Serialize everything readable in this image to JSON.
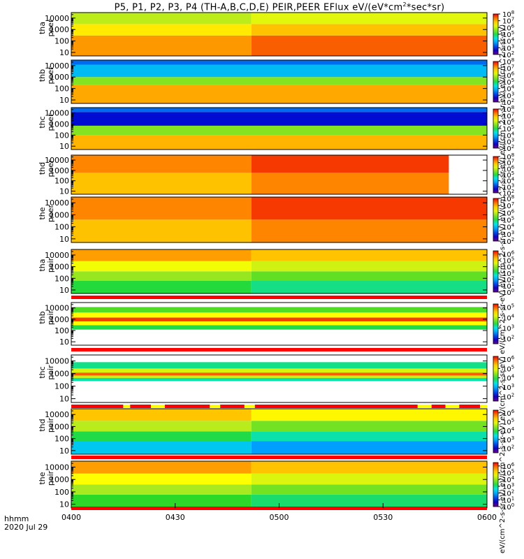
{
  "title_prefix": "P5, P1, P2, P3, P4 (TH-A,B,C,D,E) PEIR,PEER EFlux eV/(eV*cm",
  "title_exp": "2",
  "title_suffix": "*sec*sr)",
  "corner_label": {
    "line1": "hhmm",
    "line2": "2020 Jul 29"
  },
  "colorbar_label": "eV/(cm^2-s-sr-eV) eV/(cm^2-s-sr-eV) eV/(cm^2-s-sr-eV) eV/(cm^2-s-sr-eV) eV/(cm^2-s-sr-eV) eV/(cm^2-s-sr-eV) eV/(cm^2-s-sr-eV) eV/(cm^2-s-sr-eV) eV/(cm^2-s-sr-eV) [eV/(cm2-s-sr-eV)] (4)",
  "colors": {
    "low": "#0000cc",
    "mid": "#00e0e0",
    "high": "#ff0000",
    "flag_red": "#ff0000",
    "flag_yellow": "#ffff00"
  },
  "chart_data": {
    "type": "heatmap",
    "x_ticks": [
      "0400",
      "0430",
      "0500",
      "0530",
      "0600"
    ],
    "x_range_minutes": [
      0,
      120
    ],
    "y_scale": "log",
    "y_ticks": [
      "10000",
      "1000",
      "100",
      "10"
    ],
    "y_range": [
      5,
      30000
    ],
    "colorbar_scale": "log",
    "panels": [
      {
        "probe": "tha",
        "species": "peer",
        "cb_ticks": [
          8,
          7,
          6,
          5,
          4,
          3,
          2
        ],
        "cb_range": [
          2,
          8
        ],
        "bands": [
          [
            5,
            300,
            7.2
          ],
          [
            300,
            3000,
            6.6
          ],
          [
            3000,
            30000,
            5.9
          ]
        ],
        "step_minute": 52,
        "step_delta": 0.3,
        "gap_after_minute": null
      },
      {
        "probe": "thb",
        "species": "peer",
        "cb_ticks": [
          8,
          7,
          6,
          5,
          4,
          3,
          2
        ],
        "cb_range": [
          2,
          8
        ],
        "bands": [
          [
            5,
            200,
            7.1
          ],
          [
            200,
            1000,
            5.6
          ],
          [
            1000,
            12000,
            4.0
          ],
          [
            12000,
            30000,
            3.4
          ]
        ],
        "step_minute": null,
        "step_delta": 0,
        "gap_after_minute": null
      },
      {
        "probe": "thc",
        "species": "peer",
        "cb_ticks": [
          8,
          7,
          6,
          5,
          4,
          3,
          2
        ],
        "cb_range": [
          2,
          8
        ],
        "bands": [
          [
            5,
            100,
            7.0
          ],
          [
            100,
            700,
            5.6
          ],
          [
            700,
            12000,
            2.8
          ],
          [
            12000,
            30000,
            3.4
          ]
        ],
        "step_minute": null,
        "step_delta": 0,
        "gap_after_minute": null
      },
      {
        "probe": "thd",
        "species": "peer",
        "cb_ticks": [
          8,
          7,
          6,
          5,
          4,
          3,
          2
        ],
        "cb_range": [
          2,
          8
        ],
        "bands": [
          [
            5,
            600,
            6.9
          ],
          [
            600,
            30000,
            7.3
          ]
        ],
        "step_minute": 52,
        "step_delta": 0.4,
        "gap_after_minute": 109
      },
      {
        "probe": "the",
        "species": "peer",
        "cb_ticks": [
          8,
          7,
          6,
          5,
          4,
          3,
          2
        ],
        "cb_range": [
          2,
          8
        ],
        "bands": [
          [
            5,
            400,
            6.9
          ],
          [
            400,
            30000,
            7.3
          ]
        ],
        "step_minute": 52,
        "step_delta": 0.4,
        "gap_after_minute": null
      },
      {
        "probe": "tha",
        "species": "peir",
        "cb_ticks": [
          6,
          5,
          4,
          3,
          2,
          1,
          0
        ],
        "cb_range": [
          0,
          6.5
        ],
        "bands": [
          [
            5,
            60,
            3.3
          ],
          [
            60,
            400,
            4.0
          ],
          [
            400,
            3000,
            4.7
          ],
          [
            3000,
            30000,
            5.6
          ]
        ],
        "step_minute": 52,
        "step_delta": -0.3,
        "gap_after_minute": null
      },
      {
        "probe": "thb",
        "species": "peir",
        "cb_ticks": [
          5,
          4,
          3,
          2
        ],
        "cb_range": [
          1.5,
          5.3
        ],
        "bands": [
          [
            120,
            300,
            3.4
          ],
          [
            300,
            650,
            4.3
          ],
          [
            650,
            1400,
            5.1
          ],
          [
            1400,
            4000,
            4.3
          ],
          [
            4000,
            12000,
            3.6
          ]
        ],
        "step_minute": null,
        "step_delta": 0,
        "gap_after_minute": null
      },
      {
        "probe": "thc",
        "species": "peir",
        "cb_ticks": [
          6,
          5,
          4,
          3,
          2
        ],
        "cb_range": [
          1.5,
          6.3
        ],
        "bands": [
          [
            250,
            450,
            3.6
          ],
          [
            450,
            700,
            4.7
          ],
          [
            700,
            1200,
            5.9
          ],
          [
            1200,
            2500,
            4.8
          ],
          [
            2500,
            8000,
            3.7
          ]
        ],
        "step_minute": null,
        "step_delta": 0,
        "gap_after_minute": null
      },
      {
        "probe": "thd",
        "species": "peir",
        "cb_ticks": [
          6,
          5,
          4,
          3,
          2
        ],
        "cb_range": [
          1.5,
          6.3
        ],
        "bands": [
          [
            5,
            60,
            3.2
          ],
          [
            60,
            400,
            3.9
          ],
          [
            400,
            3000,
            4.6
          ],
          [
            3000,
            30000,
            5.4
          ]
        ],
        "step_minute": 52,
        "step_delta": -0.3,
        "gap_after_minute": null
      },
      {
        "probe": "the",
        "species": "peir",
        "cb_ticks": [
          6,
          5,
          4,
          3,
          2,
          1,
          0
        ],
        "cb_range": [
          0,
          6.5
        ],
        "bands": [
          [
            5,
            60,
            3.4
          ],
          [
            60,
            400,
            4.1
          ],
          [
            400,
            3000,
            4.8
          ],
          [
            3000,
            30000,
            5.6
          ]
        ],
        "step_minute": 52,
        "step_delta": -0.3,
        "gap_after_minute": null
      }
    ],
    "quality_flags": [
      {
        "after_panel": 5,
        "segments": [
          [
            0,
            120,
            "red"
          ]
        ]
      },
      {
        "after_panel": 6,
        "segments": [
          [
            0,
            120,
            "red"
          ]
        ]
      },
      {
        "after_panel": 7,
        "segments": [
          [
            0,
            15,
            "red"
          ],
          [
            15,
            17,
            "yellow"
          ],
          [
            17,
            23,
            "red"
          ],
          [
            23,
            27,
            "yellow"
          ],
          [
            27,
            40,
            "red"
          ],
          [
            40,
            43,
            "yellow"
          ],
          [
            43,
            50,
            "red"
          ],
          [
            50,
            53,
            "yellow"
          ],
          [
            53,
            100,
            "red"
          ],
          [
            100,
            104,
            "yellow"
          ],
          [
            104,
            108,
            "red"
          ],
          [
            108,
            112,
            "yellow"
          ],
          [
            112,
            118,
            "red"
          ],
          [
            118,
            120,
            "yellow"
          ]
        ]
      },
      {
        "after_panel": 8,
        "segments": [
          [
            0,
            120,
            "red"
          ]
        ]
      },
      {
        "after_panel": 9,
        "segments": [
          [
            0,
            120,
            "red"
          ]
        ]
      }
    ]
  }
}
